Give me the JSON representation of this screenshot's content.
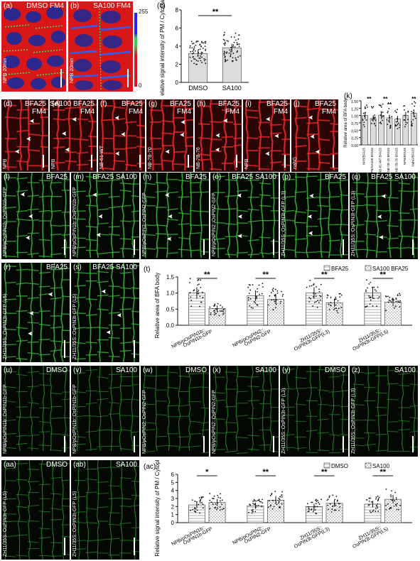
{
  "row1": {
    "a": {
      "label": "(a)",
      "title": "DMSO FM4",
      "side": "NPB 20min"
    },
    "b": {
      "label": "(b)",
      "title": "SA100 FM4",
      "side": "NPB 20min"
    },
    "colorbar": {
      "max": "255",
      "min": "0"
    }
  },
  "row2": [
    {
      "label": "(d)",
      "title": "BFA25\nFM4",
      "side": "NPB"
    },
    {
      "label": "(e)",
      "title": "SA100 BFA25\nFM4",
      "side": "NPB"
    },
    {
      "label": "(f)",
      "title": "BFA25\nFM4",
      "side": "NB-61-WT"
    },
    {
      "label": "(g)",
      "title": "BFA25\nFM4",
      "side": "NB-7B-70"
    },
    {
      "label": "(h)",
      "title": "BFA25\nFM4",
      "side": "NB-7B-76"
    },
    {
      "label": "(i)",
      "title": "BFA25\nFM4",
      "side": "NPB"
    },
    {
      "label": "(j)",
      "title": "BFA25\nFM4",
      "side": "nahG"
    }
  ],
  "row3": [
    {
      "label": "(l)",
      "title": "BFA25",
      "side": "NPB/pOsPIN1b::OsPIN1b-GFP"
    },
    {
      "label": "(m)",
      "title": "BFA25 SA100",
      "side": "NPB/pOsPIN1b::OsPIN1b-GFP"
    },
    {
      "label": "(n)",
      "title": "BFA25",
      "side": "NPB/pOsPIN2::OsPIN2-GFP"
    },
    {
      "label": "(o)",
      "title": "BFA25 SA100",
      "side": "NPB/pOsPIN2::OsPIN2-GFP"
    },
    {
      "label": "(p)",
      "title": "BFA25",
      "side": "ZH11/35S::OsPIN3t-GFP (L3)"
    },
    {
      "label": "(q)",
      "title": "BFA25 SA100",
      "side": "ZH11/35S::OsPIN3t-GFP (L3)"
    }
  ],
  "row4": [
    {
      "label": "(r)",
      "title": "BFA25",
      "side": "ZH11/35S::OsPIN3t-GFP (L5)"
    },
    {
      "label": "(s)",
      "title": "BFA25 SA100",
      "side": "ZH11/35S::OsPIN3t-GFP (L5)"
    }
  ],
  "row5": [
    {
      "label": "(u)",
      "title": "DMSO",
      "side": "NPB/pOsPIN1b::OsPIN1b-GFP"
    },
    {
      "label": "(v)",
      "title": "SA100",
      "side": "NPB/pOsPIN1b::OsPIN1b-GFP"
    },
    {
      "label": "(w)",
      "title": "DMSO",
      "side": "NPB/pOsPIN2::OsPIN2-GFP"
    },
    {
      "label": "(x)",
      "title": "SA100",
      "side": "NPB/pOsPIN2::OsPIN2-GFP"
    },
    {
      "label": "(y)",
      "title": "DMSO",
      "side": "ZH11/35S::OsPIN3t-GFP (L3)"
    },
    {
      "label": "(z)",
      "title": "SA100",
      "side": "ZH11/35S::OsPIN3t-GFP (L3)"
    }
  ],
  "row6": [
    {
      "label": "(aa)",
      "title": "DMSO",
      "side": "ZH11/35S::OsPIN3t-GFP (L5)"
    },
    {
      "label": "(ab)",
      "title": "SA100",
      "side": "ZH11/35S::OsPIN3t-GFP (L5)"
    }
  ],
  "chart_data": [
    {
      "panel": "(c)",
      "type": "bar",
      "ylabel": "Relative signal intensity of PM / Cytoplasm",
      "categories": [
        "DMSO",
        "SA100"
      ],
      "values": [
        3.2,
        3.8
      ],
      "ylim": [
        0,
        8
      ],
      "yticks": [
        "0",
        "2",
        "4",
        "6",
        "8"
      ],
      "significance": "**",
      "colors": {
        "bar": "#d9d9d9",
        "points": "#111111"
      }
    },
    {
      "panel": "(k)",
      "type": "bar",
      "ylabel": "Relative area of BFA body",
      "ylim": [
        0,
        1.5
      ],
      "yticks": [
        "0.00",
        "0.25",
        "0.50",
        "0.75",
        "1.00",
        "1.25",
        "1.50"
      ],
      "categories": [
        "NPB/BFA25",
        "NPB/SA100 BFA25",
        "NB-61-WT BFA25",
        "NB-7B-70 BFA25",
        "NB-7B-76 BFA25",
        "NPB/BFA25",
        "NahG/BFA25"
      ],
      "values": [
        1.0,
        0.9,
        1.0,
        0.92,
        0.88,
        1.0,
        1.08
      ],
      "significance": [
        "**",
        "**",
        "**",
        "**"
      ]
    },
    {
      "panel": "(t)",
      "type": "bar",
      "ylabel": "Relative area of BFA body",
      "ylim": [
        0,
        1.5
      ],
      "yticks": [
        "0.0",
        "0.5",
        "1.0",
        "1.5"
      ],
      "legend": [
        "BFA25",
        "SA100 BFA25"
      ],
      "legend_position": "top-right",
      "groups": [
        "NPB/pOsPIN1b::OsPIN1b-GFP",
        "NPB/pOsPIN2::OsPIN2-GFP",
        "ZH11/35S::OsPIN3t-GFP(L3)",
        "ZH11/35S::OsPIN3t-GFP(L5)"
      ],
      "group_line1": [
        "NPB/pOsPIN1b::",
        "NPB/pOsPIN2::",
        "ZH11/35S::",
        "ZH11/35S::"
      ],
      "group_line2": [
        "OsPIN1b-GFP",
        "OsPIN2-GFP",
        "OsPIN3t-GFP(L3)",
        "OsPIN3t-GFP(L5)"
      ],
      "series": [
        {
          "name": "BFA25",
          "values": [
            1.0,
            0.92,
            1.0,
            1.0
          ]
        },
        {
          "name": "SA100 BFA25",
          "values": [
            0.52,
            0.8,
            0.7,
            0.72
          ]
        }
      ],
      "significance": [
        "**",
        "**",
        "**",
        "**"
      ]
    },
    {
      "panel": "(ac)",
      "type": "bar",
      "ylabel": "Relative signal intensity of PM / Cytoplasm",
      "ylim": [
        0,
        6
      ],
      "yticks": [
        "0",
        "1",
        "2",
        "3",
        "4",
        "5",
        "6"
      ],
      "legend": [
        "DMSO",
        "SA100"
      ],
      "legend_position": "top-right",
      "groups": [
        "NPB/pOsPIN1b::OsPIN1b-GFP",
        "NPB/pOsPIN2::OsPIN2-GFP",
        "ZH11/35S::OsPIN3t-GFP(L3)",
        "ZH11/35S::OsPIN3t-GFP(L5)"
      ],
      "group_line1": [
        "NPB/pOsPIN1b::",
        "NPB/pOsPIN2::",
        "ZH11/35S::",
        "ZH11/35S::"
      ],
      "group_line2": [
        "OsPIN1b-GFP",
        "OsPIN2-GFP",
        "OsPIN3t-GFP(L3)",
        "OsPIN3t-GFP(L5)"
      ],
      "series": [
        {
          "name": "DMSO",
          "values": [
            2.2,
            2.1,
            2.0,
            2.3
          ]
        },
        {
          "name": "SA100",
          "values": [
            2.5,
            2.8,
            2.4,
            2.9
          ]
        }
      ],
      "significance": [
        "*",
        "**",
        "**",
        "**"
      ]
    }
  ]
}
